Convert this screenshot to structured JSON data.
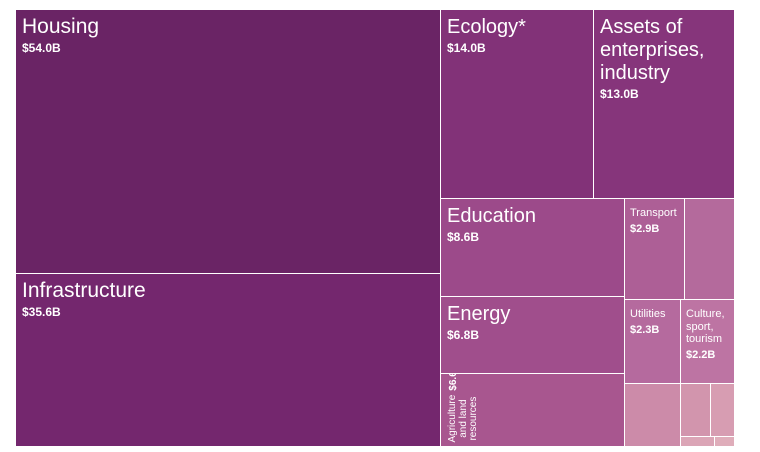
{
  "chart_data": {
    "type": "treemap",
    "title": "",
    "items": [
      {
        "label": "Housing",
        "value_label": "$54.0B",
        "value": 54.0,
        "color": "#6a2465"
      },
      {
        "label": "Infrastructure",
        "value_label": "$35.6B",
        "value": 35.6,
        "color": "#74276e"
      },
      {
        "label": "Ecology*",
        "value_label": "$14.0B",
        "value": 14.0,
        "color": "#823278"
      },
      {
        "label": "Assets of enterprises, industry",
        "value_label": "$13.0B",
        "value": 13.0,
        "color": "#86357b"
      },
      {
        "label": "Education",
        "value_label": "$8.6B",
        "value": 8.6,
        "color": "#9c4a8a"
      },
      {
        "label": "Energy",
        "value_label": "$6.8B",
        "value": 6.8,
        "color": "#a04e8c"
      },
      {
        "label": "Agriculture and land resources",
        "value_label": "$6.6B",
        "value": 6.6,
        "color": "#a8568f"
      },
      {
        "label": "Transport",
        "value_label": "$2.9B",
        "value": 2.9,
        "color": "#ad5f96"
      },
      {
        "label": "",
        "value_label": "",
        "value": 2.5,
        "color": "#b46a9c"
      },
      {
        "label": "Utilities",
        "value_label": "$2.3B",
        "value": 2.3,
        "color": "#b56a9e"
      },
      {
        "label": "Culture, sport, tourism",
        "value_label": "$2.2B",
        "value": 2.2,
        "color": "#bd74a3"
      },
      {
        "label": "",
        "value_label": "",
        "value": 1.6,
        "color": "#cc8ba9"
      },
      {
        "label": "",
        "value_label": "",
        "value": 0.9,
        "color": "#d295ad"
      },
      {
        "label": "",
        "value_label": "",
        "value": 0.7,
        "color": "#d79db2"
      },
      {
        "label": "",
        "value_label": "",
        "value": 0.3,
        "color": "#dba5b6"
      },
      {
        "label": "",
        "value_label": "",
        "value": 0.2,
        "color": "#dfadba"
      }
    ]
  }
}
